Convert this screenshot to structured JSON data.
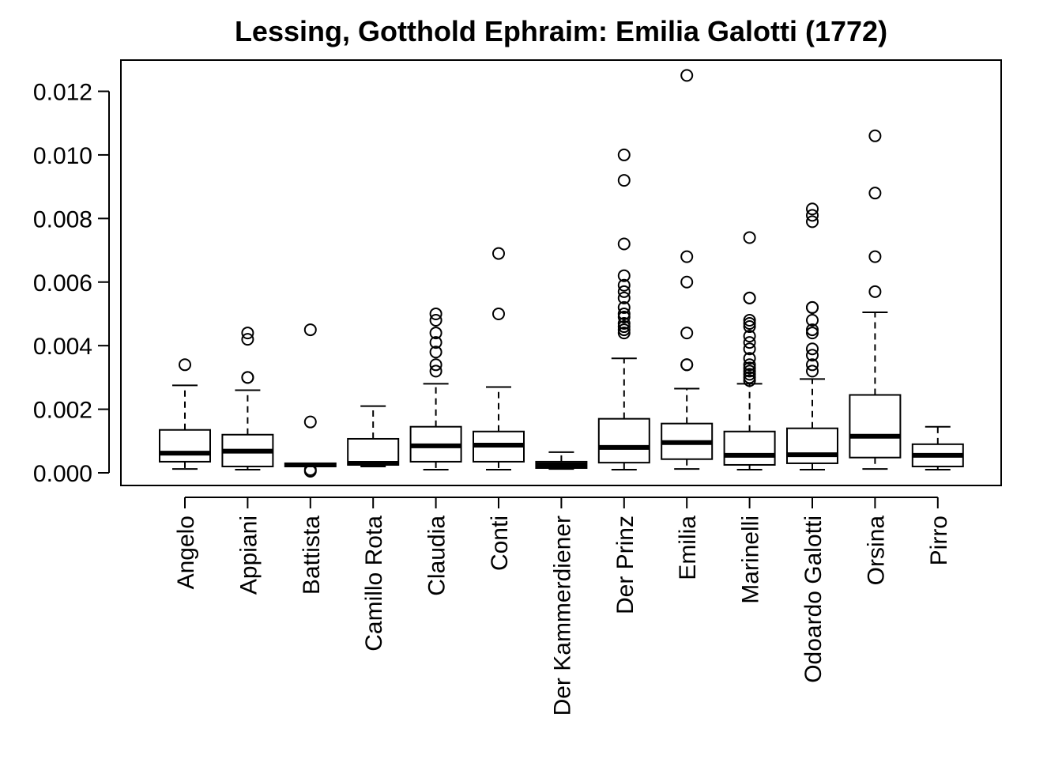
{
  "chart_data": {
    "type": "boxplot",
    "title": "Lessing, Gotthold Ephraim: Emilia Galotti (1772)",
    "xlabel": "",
    "ylabel": "",
    "ylim": [
      -0.0004,
      0.0131
    ],
    "yticks": [
      0.0,
      0.002,
      0.004,
      0.006,
      0.008,
      0.01,
      0.012
    ],
    "ytick_labels": [
      "0.000",
      "0.002",
      "0.004",
      "0.006",
      "0.008",
      "0.010",
      "0.012"
    ],
    "grid": false,
    "legend": "none",
    "categories": [
      "Angelo",
      "Appiani",
      "Battista",
      "Camillo Rota",
      "Claudia",
      "Conti",
      "Der Kammerdiener",
      "Der Prinz",
      "Emilia",
      "Marinelli",
      "Odoardo Galotti",
      "Orsina",
      "Pirro"
    ],
    "boxes": [
      {
        "name": "Angelo",
        "whisker_low": 0.00012,
        "q1": 0.00035,
        "median": 0.00062,
        "q3": 0.00135,
        "whisker_high": 0.00275,
        "outliers": [
          0.0034
        ]
      },
      {
        "name": "Appiani",
        "whisker_low": 0.0001,
        "q1": 0.0002,
        "median": 0.00068,
        "q3": 0.0012,
        "whisker_high": 0.0026,
        "outliers": [
          0.003,
          0.003,
          0.0042,
          0.0044
        ]
      },
      {
        "name": "Battista",
        "whisker_low": 0.0002,
        "q1": 0.0002,
        "median": 0.00025,
        "q3": 0.0003,
        "whisker_high": 0.0003,
        "outliers": [
          5e-05,
          0.0001,
          0.0016,
          0.0045
        ]
      },
      {
        "name": "Camillo Rota",
        "whisker_low": 0.0002,
        "q1": 0.00025,
        "median": 0.0003,
        "q3": 0.00107,
        "whisker_high": 0.0021,
        "outliers": []
      },
      {
        "name": "Claudia",
        "whisker_low": 0.0001,
        "q1": 0.00035,
        "median": 0.00085,
        "q3": 0.00145,
        "whisker_high": 0.0028,
        "outliers": [
          0.0032,
          0.0034,
          0.0038,
          0.0041,
          0.0044,
          0.0048,
          0.005
        ]
      },
      {
        "name": "Conti",
        "whisker_low": 0.0001,
        "q1": 0.00035,
        "median": 0.00087,
        "q3": 0.0013,
        "whisker_high": 0.0027,
        "outliers": [
          0.005,
          0.0069
        ]
      },
      {
        "name": "Der Kammerdiener",
        "whisker_low": 0.00012,
        "q1": 0.00015,
        "median": 0.00025,
        "q3": 0.00035,
        "whisker_high": 0.00065,
        "outliers": []
      },
      {
        "name": "Der Prinz",
        "whisker_low": 0.0001,
        "q1": 0.00032,
        "median": 0.0008,
        "q3": 0.0017,
        "whisker_high": 0.0036,
        "outliers": [
          0.0044,
          0.0045,
          0.0046,
          0.0047,
          0.0049,
          0.005,
          0.0052,
          0.0055,
          0.0057,
          0.0059,
          0.0062,
          0.0072,
          0.0092,
          0.01
        ]
      },
      {
        "name": "Emilia",
        "whisker_low": 0.00012,
        "q1": 0.00043,
        "median": 0.00095,
        "q3": 0.00155,
        "whisker_high": 0.00265,
        "outliers": [
          0.0034,
          0.0034,
          0.0044,
          0.006,
          0.0068,
          0.0125
        ]
      },
      {
        "name": "Marinelli",
        "whisker_low": 0.0001,
        "q1": 0.00025,
        "median": 0.00055,
        "q3": 0.0013,
        "whisker_high": 0.0028,
        "outliers": [
          0.0029,
          0.003,
          0.0031,
          0.0032,
          0.0033,
          0.0034,
          0.0036,
          0.0039,
          0.0041,
          0.0043,
          0.0046,
          0.0047,
          0.0048,
          0.0055,
          0.0055,
          0.0074
        ]
      },
      {
        "name": "Odoardo Galotti",
        "whisker_low": 0.0001,
        "q1": 0.0003,
        "median": 0.00057,
        "q3": 0.0014,
        "whisker_high": 0.00295,
        "outliers": [
          0.0032,
          0.0034,
          0.0037,
          0.0039,
          0.0044,
          0.0045,
          0.0048,
          0.0052,
          0.0052,
          0.0079,
          0.0081,
          0.0083
        ]
      },
      {
        "name": "Orsina",
        "whisker_low": 0.00012,
        "q1": 0.00048,
        "median": 0.00115,
        "q3": 0.00245,
        "whisker_high": 0.00505,
        "outliers": [
          0.0057,
          0.0068,
          0.0088,
          0.0106
        ]
      },
      {
        "name": "Pirro",
        "whisker_low": 0.0001,
        "q1": 0.0002,
        "median": 0.00055,
        "q3": 0.0009,
        "whisker_high": 0.00145,
        "outliers": []
      }
    ]
  }
}
